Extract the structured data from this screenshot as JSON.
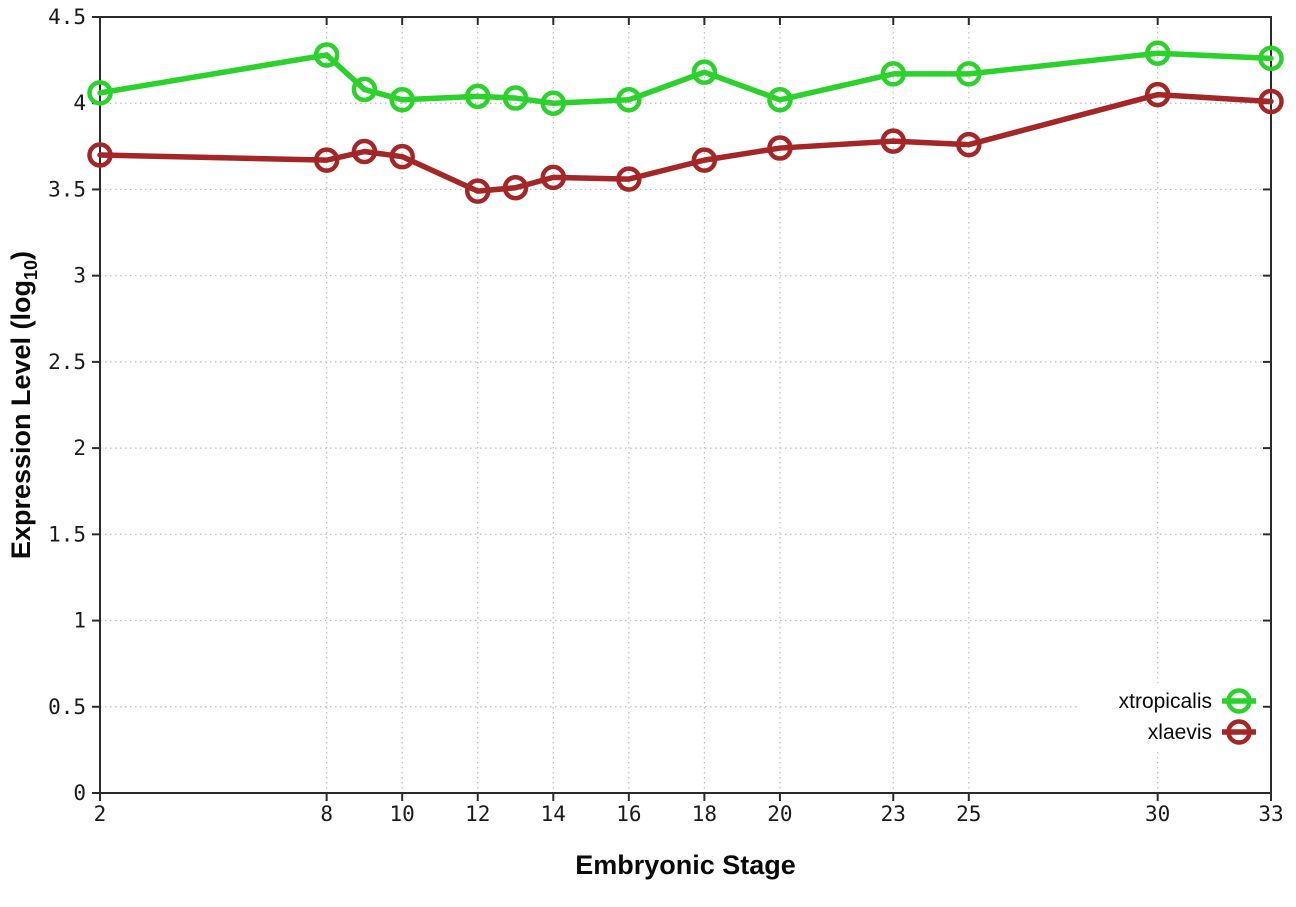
{
  "chart_data": {
    "type": "line",
    "title": "",
    "xlabel": "Embryonic Stage",
    "ylabel": "Expression Level (log10)",
    "ylabel_parts": {
      "pre": "Expression Level (log",
      "sub": "10",
      "post": ")"
    },
    "xlim": [
      2,
      33
    ],
    "ylim": [
      0,
      4.5
    ],
    "grid": true,
    "legend_position": "bottom-right",
    "xticks": [
      2,
      8,
      10,
      12,
      14,
      16,
      18,
      20,
      23,
      25,
      30,
      33
    ],
    "xtick_labels": [
      "2",
      "8",
      "10",
      "12",
      "14",
      "16",
      "18",
      "20",
      "23",
      "25",
      "30",
      "33"
    ],
    "yticks": [
      0,
      0.5,
      1,
      1.5,
      2,
      2.5,
      3,
      3.5,
      4,
      4.5
    ],
    "ytick_labels": [
      "0",
      "0.5",
      "1",
      "1.5",
      "2",
      "2.5",
      "3",
      "3.5",
      "4",
      "4.5"
    ],
    "x": [
      2,
      8,
      9,
      10,
      12,
      13,
      14,
      16,
      18,
      20,
      23,
      25,
      30,
      33
    ],
    "series": [
      {
        "name": "xtropicalis",
        "color": "#2bd22b",
        "marker": "open-circle",
        "values": [
          4.06,
          4.28,
          4.08,
          4.02,
          4.04,
          4.03,
          4.0,
          4.02,
          4.18,
          4.02,
          4.17,
          4.17,
          4.29,
          4.26
        ]
      },
      {
        "name": "xlaevis",
        "color": "#a52626",
        "marker": "open-circle",
        "values": [
          3.7,
          3.67,
          3.72,
          3.69,
          3.49,
          3.51,
          3.57,
          3.56,
          3.67,
          3.74,
          3.78,
          3.76,
          4.05,
          4.01
        ]
      }
    ],
    "colors": {
      "background": "#ffffff",
      "grid": "#bdbdbd",
      "axis": "#2b2b2b",
      "text": "#1a1a1a"
    }
  }
}
